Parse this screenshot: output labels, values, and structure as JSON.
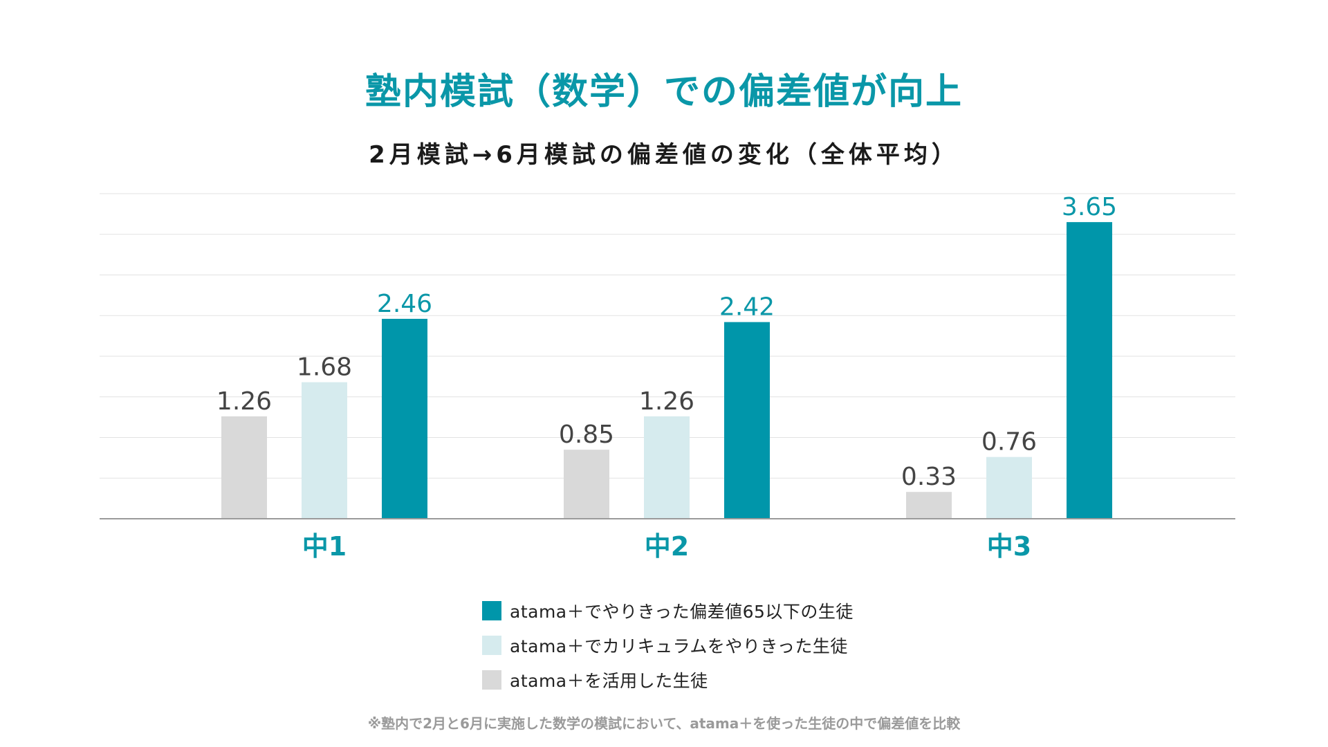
{
  "title": "塾内模試（数学）での偏差値が向上",
  "subtitle": "2月模試→6月模試の偏差値の変化（全体平均）",
  "footnote": "※塾内で2月と6月に実施した数学の模試において、atama＋を使った生徒の中で偏差値を比較",
  "colors": {
    "teal": "#0096aa",
    "light_teal": "#d6ebee",
    "gray": "#d9d9d9",
    "category_label": "#0a97a8",
    "value_label": "#444444",
    "gridline": "#e2e2e2",
    "baseline": "#9a9a9a"
  },
  "chart_data": {
    "type": "bar",
    "categories": [
      "中1",
      "中2",
      "中3"
    ],
    "series": [
      {
        "name": "atama＋を活用した生徒",
        "color": "#d9d9d9",
        "values": [
          1.26,
          0.85,
          0.33
        ]
      },
      {
        "name": "atama＋でカリキュラムをやりきった生徒",
        "color": "#d6ebee",
        "values": [
          1.68,
          1.26,
          0.76
        ]
      },
      {
        "name": "atama＋でやりきった偏差値65以下の生徒",
        "color": "#0096aa",
        "values": [
          2.46,
          2.42,
          3.65
        ]
      }
    ],
    "ylim": [
      0,
      4.0
    ],
    "grid": true,
    "legend_position": "bottom-center",
    "legend_order": [
      2,
      1,
      0
    ]
  }
}
